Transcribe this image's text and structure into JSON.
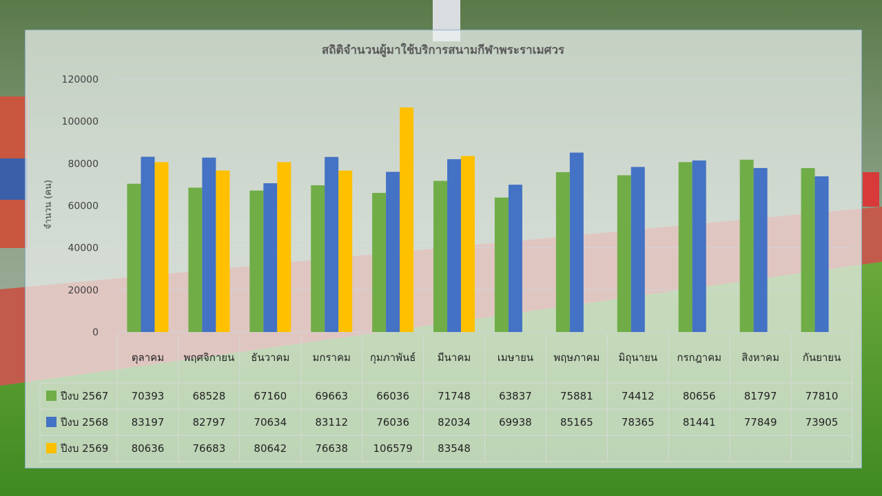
{
  "chart_data": {
    "type": "bar",
    "title": "สถิติจำนวนผู้มาใช้บริการสนามกีฬาพระราเมศวร",
    "ylabel": "จำนวน (คน)",
    "xlabel": "",
    "ylim": [
      0,
      120000
    ],
    "yticks": [
      "120000",
      "100000",
      "80000",
      "60000",
      "40000",
      "20000",
      "0"
    ],
    "grid": true,
    "legend_position": "bottom (data table)",
    "categories": [
      "ตุลาคม",
      "พฤศจิกายน",
      "ธันวาคม",
      "มกราคม",
      "กุมภาพันธ์",
      "มีนาคม",
      "เมษายน",
      "พฤษภาคม",
      "มิถุนายน",
      "กรกฎาคม",
      "สิงหาคม",
      "กันยายน"
    ],
    "series": [
      {
        "name": "ปีงบ 2567",
        "color": "#70ad47",
        "values": [
          70393,
          68528,
          67160,
          69663,
          66036,
          71748,
          63837,
          75881,
          74412,
          80656,
          81797,
          77810
        ]
      },
      {
        "name": "ปีงบ 2568",
        "color": "#4472c4",
        "values": [
          83197,
          82797,
          70634,
          83112,
          76036,
          82034,
          69938,
          85165,
          78365,
          81441,
          77849,
          73905
        ]
      },
      {
        "name": "ปีงบ 2569",
        "color": "#ffc000",
        "values": [
          80636,
          76683,
          80642,
          76638,
          106579,
          83548,
          null,
          null,
          null,
          null,
          null,
          null
        ]
      }
    ]
  }
}
